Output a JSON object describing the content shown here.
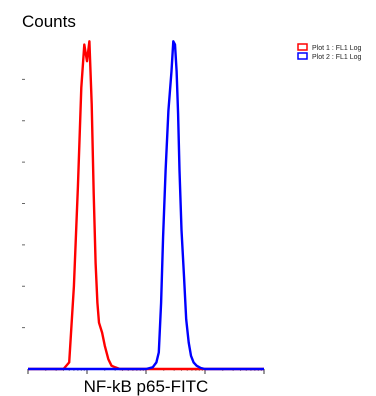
{
  "chart_data": {
    "type": "line",
    "title": "",
    "ylabel": "Counts",
    "xlabel": "NF-kB p65-FITC",
    "x_scale": "log",
    "xlim": [
      1,
      10000
    ],
    "ylim": [
      0,
      100
    ],
    "grid": false,
    "legend_position": "top-right",
    "series": [
      {
        "name": "Plot 1 : FL1 Log",
        "color": "#ff0000",
        "x": [
          1.0,
          2.0,
          4.0,
          5.0,
          6.0,
          7.0,
          8.0,
          9.0,
          10.0,
          11.0,
          12.0,
          13.0,
          14.0,
          15.0,
          16.0,
          18.0,
          20.0,
          23.0,
          26.0,
          30.0,
          36.0,
          45.0,
          1000.0,
          10000.0
        ],
        "y": [
          0,
          0,
          0,
          2,
          25,
          55,
          85,
          98,
          93,
          99,
          80,
          53,
          32,
          20,
          14,
          11,
          7,
          3,
          1,
          0.5,
          0,
          0,
          0,
          0
        ]
      },
      {
        "name": "Plot 2 : FL1 Log",
        "color": "#0000ff",
        "x": [
          1.0,
          100.0,
          130.0,
          150.0,
          165.0,
          180.0,
          195.0,
          215.0,
          240.0,
          270.0,
          290.0,
          310.0,
          330.0,
          350.0,
          370.0,
          400.0,
          440.0,
          480.0,
          530.0,
          580.0,
          640.0,
          720.0,
          850.0,
          1000.0,
          10000.0
        ],
        "y": [
          0,
          0,
          0.5,
          2,
          5,
          20,
          40,
          60,
          78,
          90,
          99,
          98,
          90,
          77,
          60,
          42,
          28,
          15,
          8,
          4,
          2,
          1,
          0.3,
          0,
          0
        ]
      }
    ]
  }
}
